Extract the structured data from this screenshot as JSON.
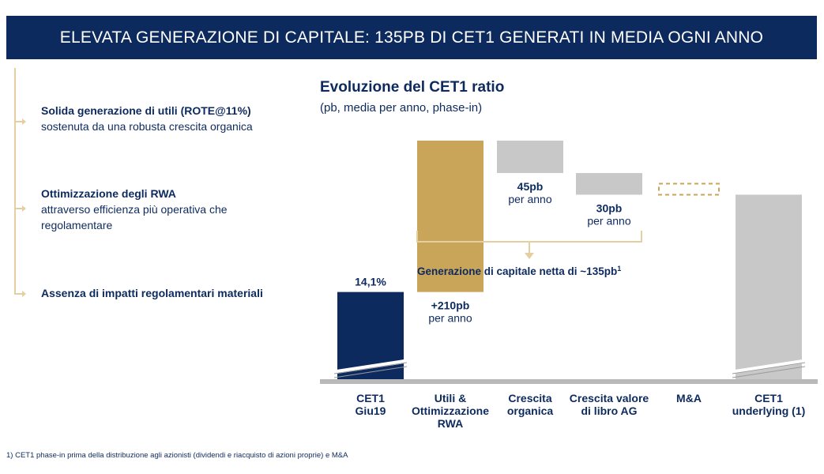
{
  "header": {
    "title": "ELEVATA GENERAZIONE DI CAPITALE: 135PB DI CET1 GENERATI IN MEDIA OGNI ANNO"
  },
  "bullets": [
    {
      "title": "Solida generazione di utili (ROTE@11%)",
      "text": "sostenuta da una robusta crescita organica"
    },
    {
      "title": "Ottimizzazione degli RWA",
      "text": "attraverso efficienza più operativa che regolamentare"
    },
    {
      "title": "Assenza di impatti regolamentari materiali",
      "text": ""
    }
  ],
  "chart_data": {
    "type": "waterfall",
    "title": "Evoluzione del CET1 ratio",
    "subtitle": "(pb, media per anno, phase-in)",
    "axis_break": true,
    "bars": [
      {
        "category": "CET1 Giu19",
        "label_lines": [
          "CET1",
          "Giu19"
        ],
        "kind": "total",
        "start": 0,
        "end": 14.1,
        "label": "14,1%",
        "sublabel": "",
        "color": "#0d2a5e"
      },
      {
        "category": "Utili & Ottimizzazione RWA",
        "label_lines": [
          "Utili &",
          "Ottimizzazione",
          "RWA"
        ],
        "kind": "increase",
        "start": 14.1,
        "end": 16.2,
        "label": "+210pb",
        "sublabel": "per anno",
        "color": "#c9a55a"
      },
      {
        "category": "Crescita organica",
        "label_lines": [
          "Crescita",
          "organica"
        ],
        "kind": "decrease",
        "start": 16.2,
        "end": 15.75,
        "label": "45pb",
        "sublabel": "per anno",
        "color": "#c8c8c8"
      },
      {
        "category": "Crescita valore di libro AG",
        "label_lines": [
          "Crescita valore",
          "di libro AG"
        ],
        "kind": "decrease",
        "start": 15.75,
        "end": 15.45,
        "label": "30pb",
        "sublabel": "per anno",
        "color": "#c8c8c8"
      },
      {
        "category": "M&A",
        "label_lines": [
          "M&A"
        ],
        "kind": "placeholder",
        "start": 15.45,
        "end": 15.45,
        "label": "",
        "sublabel": "",
        "color": "#c9a55a"
      },
      {
        "category": "CET1 underlying (1)",
        "label_lines": [
          "CET1",
          "underlying (1)"
        ],
        "kind": "total",
        "start": 0,
        "end": 15.45,
        "label": "",
        "sublabel": "",
        "color": "#c8c8c8"
      }
    ],
    "bracket_label": "Generazione di capitale netta di ~135pb",
    "bracket_sup": "1"
  },
  "footnote": "1)  CET1 phase-in prima della distribuzione agli azionisti (dividendi e riacquisto di azioni proprie) e M&A"
}
